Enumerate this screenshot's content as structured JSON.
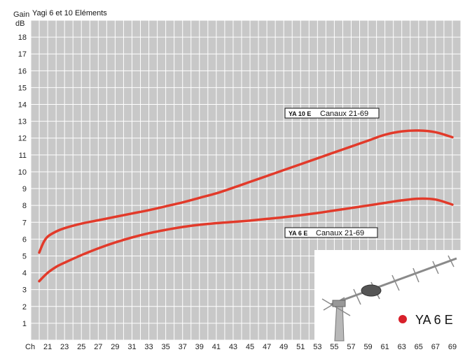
{
  "chart_data": {
    "type": "line",
    "title": "Yagi 6 et 10 Eléments",
    "ylabel": "Gain",
    "yunit": "dB",
    "xlabel": "Ch",
    "ylim": [
      0,
      19
    ],
    "xlim": [
      19,
      70
    ],
    "yticks": [
      1,
      2,
      3,
      4,
      5,
      6,
      7,
      8,
      9,
      10,
      11,
      12,
      13,
      14,
      15,
      16,
      17,
      18
    ],
    "xticks": [
      21,
      23,
      25,
      27,
      29,
      31,
      33,
      35,
      37,
      39,
      41,
      43,
      45,
      47,
      49,
      51,
      53,
      55,
      57,
      59,
      61,
      63,
      65,
      67,
      69
    ],
    "grid": true,
    "series_color": "#e23a2a",
    "series": [
      {
        "label_model": "YA 10 E",
        "label_range": "Canaux 21-69",
        "x": [
          20,
          20.5,
          21,
          22,
          23,
          25,
          27,
          29,
          31,
          33,
          35,
          37,
          39,
          41,
          43,
          45,
          47,
          49,
          51,
          53,
          55,
          57,
          59,
          61,
          63,
          65,
          67,
          69
        ],
        "y": [
          5.2,
          5.8,
          6.15,
          6.45,
          6.65,
          6.92,
          7.12,
          7.32,
          7.52,
          7.72,
          7.95,
          8.18,
          8.45,
          8.72,
          9.05,
          9.4,
          9.75,
          10.1,
          10.45,
          10.8,
          11.15,
          11.5,
          11.85,
          12.2,
          12.4,
          12.45,
          12.35,
          12.05
        ]
      },
      {
        "label_model": "YA 6 E",
        "label_range": "Canaux  21-69",
        "x": [
          20,
          21,
          22,
          23,
          25,
          27,
          29,
          31,
          33,
          35,
          37,
          39,
          41,
          43,
          45,
          47,
          49,
          51,
          53,
          55,
          57,
          59,
          61,
          63,
          65,
          67,
          69
        ],
        "y": [
          3.5,
          4.0,
          4.35,
          4.6,
          5.05,
          5.45,
          5.8,
          6.1,
          6.35,
          6.55,
          6.72,
          6.85,
          6.95,
          7.02,
          7.1,
          7.2,
          7.3,
          7.42,
          7.55,
          7.7,
          7.85,
          8.0,
          8.15,
          8.3,
          8.4,
          8.35,
          8.05
        ]
      }
    ]
  },
  "photo": {
    "caption": "YA 6 E",
    "bullet_color": "#d8202a",
    "product_icon": "yagi-antenna-icon"
  }
}
